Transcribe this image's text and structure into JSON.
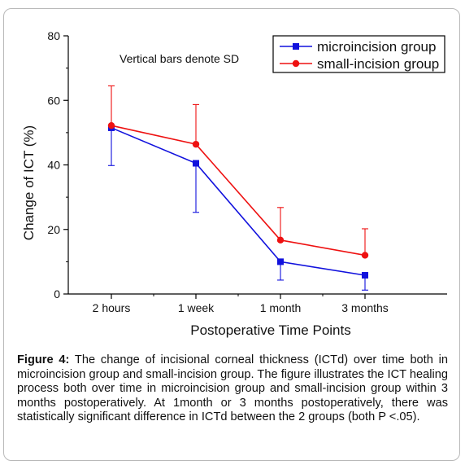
{
  "chart_data": {
    "type": "line",
    "categories": [
      "2 hours",
      "1 week",
      "1 month",
      "3 months"
    ],
    "series": [
      {
        "name": "microincision group",
        "color": "#1111dd",
        "marker": "square",
        "values": [
          51.5,
          40.5,
          10.0,
          5.8
        ],
        "sd_low": [
          39.8,
          25.3,
          4.3,
          1.2
        ],
        "sd_high": null
      },
      {
        "name": "small-incision group",
        "color": "#ee1111",
        "marker": "circle",
        "values": [
          52.2,
          46.4,
          16.7,
          12.0
        ],
        "sd_low": null,
        "sd_high": [
          64.5,
          58.7,
          26.8,
          20.2
        ]
      }
    ],
    "xlabel": "Postoperative Time Points",
    "ylabel": "Change of ICT (%)",
    "ylim": [
      0,
      80
    ],
    "yticks": [
      0,
      20,
      40,
      60,
      80
    ],
    "annotation": "Vertical bars denote SD",
    "legend_position": "top-right",
    "grid": false
  },
  "caption": {
    "label": "Figure 4:",
    "text": " The change of incisional corneal thickness (ICTd) over time both in microincision group and small-incision group. The figure illustrates the ICT healing process both over time in microincision group and small-incision group within 3 months postoperatively. At 1month or 3 months postoperatively, there was statistically significant difference in ICTd between the 2 groups (both P <.05)."
  }
}
